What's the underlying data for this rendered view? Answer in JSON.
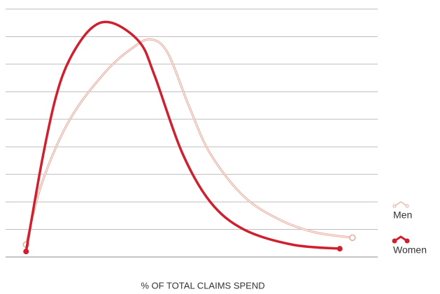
{
  "chart_data": {
    "type": "line",
    "xlabel": "% OF TOTAL CLAIMS SPEND",
    "xlim": [
      0,
      100
    ],
    "ylim": [
      0,
      9
    ],
    "yticks": [
      0,
      1,
      2,
      3,
      4,
      5,
      6,
      7,
      8,
      9
    ],
    "grid": true,
    "legend": "right",
    "series": [
      {
        "name": "Men",
        "color": "#e9a99a",
        "style": "outline",
        "x": [
          5.5,
          9.8,
          17.3,
          26.7,
          34.2,
          39.1,
          43.6,
          49.2,
          55,
          64,
          73.7,
          83,
          93.2
        ],
        "values": [
          0.45,
          2.7,
          5.0,
          6.7,
          7.6,
          7.9,
          7.4,
          5.5,
          3.75,
          2.2,
          1.35,
          0.9,
          0.7
        ]
      },
      {
        "name": "Women",
        "color": "#d0202f",
        "style": "solid",
        "x": [
          5.5,
          9.8,
          13.5,
          17.3,
          23,
          28.6,
          36,
          40,
          47.4,
          55,
          64,
          77,
          89.8
        ],
        "values": [
          0.2,
          3.5,
          5.8,
          7.2,
          8.3,
          8.5,
          7.8,
          6.6,
          3.8,
          2.0,
          1.0,
          0.45,
          0.3
        ]
      }
    ]
  }
}
